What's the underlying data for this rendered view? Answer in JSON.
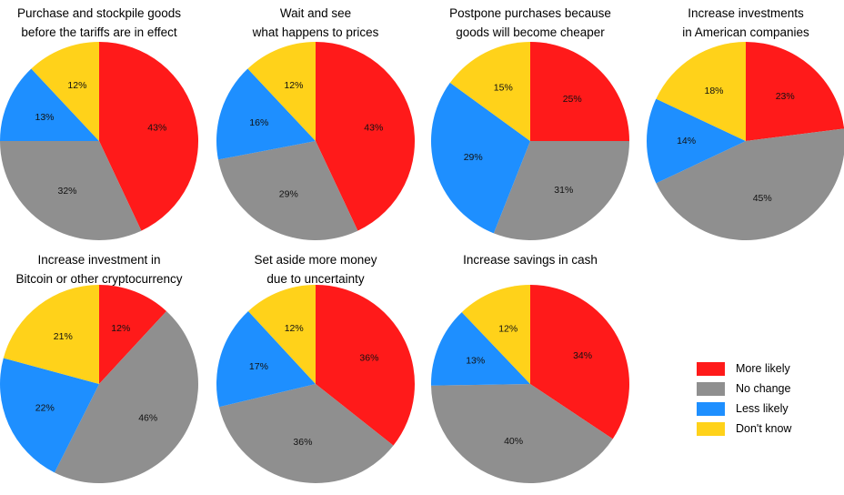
{
  "chart_data": {
    "type": "pie",
    "categories": [
      "More likely",
      "No change",
      "Less likely",
      "Don't know"
    ],
    "colors": [
      "#ff1a1a",
      "#8f8f8f",
      "#1e8fff",
      "#ffd21a"
    ],
    "legend_position": "right",
    "charts": [
      {
        "title": "Purchase and stockpile goods\nbefore the tariffs are in effect",
        "values": [
          43,
          32,
          13,
          12
        ],
        "labels": [
          "43%",
          "32%",
          "13%",
          "12%"
        ]
      },
      {
        "title": "Wait and see\nwhat happens to prices",
        "values": [
          43,
          29,
          16,
          12
        ],
        "labels": [
          "43%",
          "29%",
          "16%",
          "12%"
        ]
      },
      {
        "title": "Postpone purchases because\ngoods will become cheaper",
        "values": [
          25,
          31,
          29,
          15
        ],
        "labels": [
          "25%",
          "31%",
          "29%",
          "15%"
        ]
      },
      {
        "title": "Increase investments\nin American companies",
        "values": [
          23,
          45,
          14,
          18
        ],
        "labels": [
          "23%",
          "45%",
          "14%",
          "18%"
        ]
      },
      {
        "title": "Increase investment in\nBitcoin or other cryptocurrency",
        "values": [
          12,
          46,
          22,
          21
        ],
        "labels": [
          "12%",
          "46%",
          "22%",
          "21%"
        ]
      },
      {
        "title": "Set aside more money\ndue to uncertainty",
        "values": [
          36,
          36,
          17,
          12
        ],
        "labels": [
          "36%",
          "36%",
          "17%",
          "12%"
        ]
      },
      {
        "title": "Increase savings in cash",
        "values": [
          34,
          40,
          13,
          12
        ],
        "labels": [
          "34%",
          "40%",
          "13%",
          "12%"
        ]
      }
    ]
  }
}
